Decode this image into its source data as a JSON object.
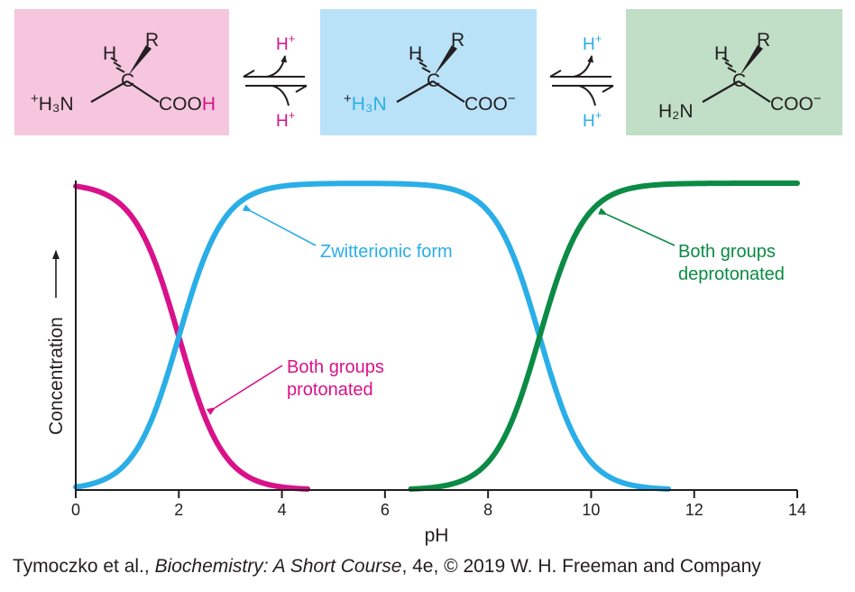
{
  "colors": {
    "protonated": "#d9128a",
    "zwitterion": "#2aaee7",
    "deprotonated": "#0b8b45",
    "box_protonated": "#f6c6de",
    "box_zwitterion": "#b9e2f8",
    "box_deprotonated": "#c0dfc6",
    "ink": "#231f20"
  },
  "equilibrium": {
    "forms": [
      {
        "h": "H",
        "r": "R",
        "c": "C",
        "amine_charge": "+",
        "amine": "H₃N",
        "acid_main": "COO",
        "acid_suffix": "H"
      },
      {
        "h": "H",
        "r": "R",
        "c": "C",
        "amine_charge": "+",
        "amine": "H₃N",
        "acid_main": "COO",
        "acid_suffix": "−"
      },
      {
        "h": "H",
        "r": "R",
        "c": "C",
        "amine_charge": "",
        "amine": "H₂N",
        "acid_main": "COO",
        "acid_suffix": "−"
      }
    ],
    "arrows": [
      {
        "top_label": "H",
        "top_sup": "+",
        "bottom_label": "H",
        "bottom_sup": "+"
      },
      {
        "top_label": "H",
        "top_sup": "+",
        "bottom_label": "H",
        "bottom_sup": "+"
      }
    ]
  },
  "chart_data": {
    "type": "line",
    "xlabel": "pH",
    "ylabel": "Concentration",
    "xlim": [
      0,
      14
    ],
    "ylim": [
      0,
      1
    ],
    "xticks": [
      0,
      2,
      4,
      6,
      8,
      10,
      12,
      14
    ],
    "pK1": 2.0,
    "pK2": 9.0,
    "series": [
      {
        "name": "Both groups protonated",
        "color_key": "protonated",
        "x": [
          0,
          0.5,
          1.0,
          1.5,
          2.0,
          2.5,
          3.0,
          3.5,
          4.0,
          4.5
        ],
        "y": [
          0.97,
          0.93,
          0.8,
          0.62,
          0.5,
          0.32,
          0.16,
          0.06,
          0.01,
          0.0
        ]
      },
      {
        "name": "Zwitterionic form",
        "color_key": "zwitterion",
        "x": [
          0,
          0.5,
          1.0,
          1.5,
          2.0,
          2.5,
          3.0,
          3.5,
          4.0,
          5.0,
          6.0,
          7.0,
          7.5,
          8.0,
          8.5,
          9.0,
          9.5,
          10.0,
          10.5,
          11.0,
          11.5
        ],
        "y": [
          0.0,
          0.03,
          0.17,
          0.36,
          0.5,
          0.68,
          0.84,
          0.94,
          0.99,
          1.0,
          1.0,
          0.99,
          0.95,
          0.84,
          0.67,
          0.5,
          0.33,
          0.15,
          0.05,
          0.01,
          0.0
        ]
      },
      {
        "name": "Both groups deprotonated",
        "color_key": "deprotonated",
        "x": [
          6.5,
          7.0,
          7.5,
          8.0,
          8.5,
          9.0,
          9.5,
          10.0,
          10.5,
          11.0,
          11.5,
          12.0,
          13.0,
          14.0
        ],
        "y": [
          0.0,
          0.01,
          0.05,
          0.16,
          0.33,
          0.5,
          0.67,
          0.85,
          0.95,
          0.99,
          1.0,
          1.0,
          1.0,
          1.0
        ]
      }
    ],
    "annotations": [
      {
        "lines": [
          "Zwitterionic form"
        ],
        "color_key": "zwitterion",
        "point": [
          3.3,
          0.92
        ]
      },
      {
        "lines": [
          "Both groups",
          "deprotonated"
        ],
        "color_key": "deprotonated",
        "point": [
          10.2,
          0.91
        ]
      },
      {
        "lines": [
          "Both groups",
          "protonated"
        ],
        "color_key": "protonated",
        "point": [
          2.6,
          0.28
        ]
      }
    ]
  },
  "credit": {
    "authors": "Tymoczko et al., ",
    "book": "Biochemistry: A Short Course",
    "rest": ", 4e, © 2019 W. H. Freeman and Company"
  }
}
